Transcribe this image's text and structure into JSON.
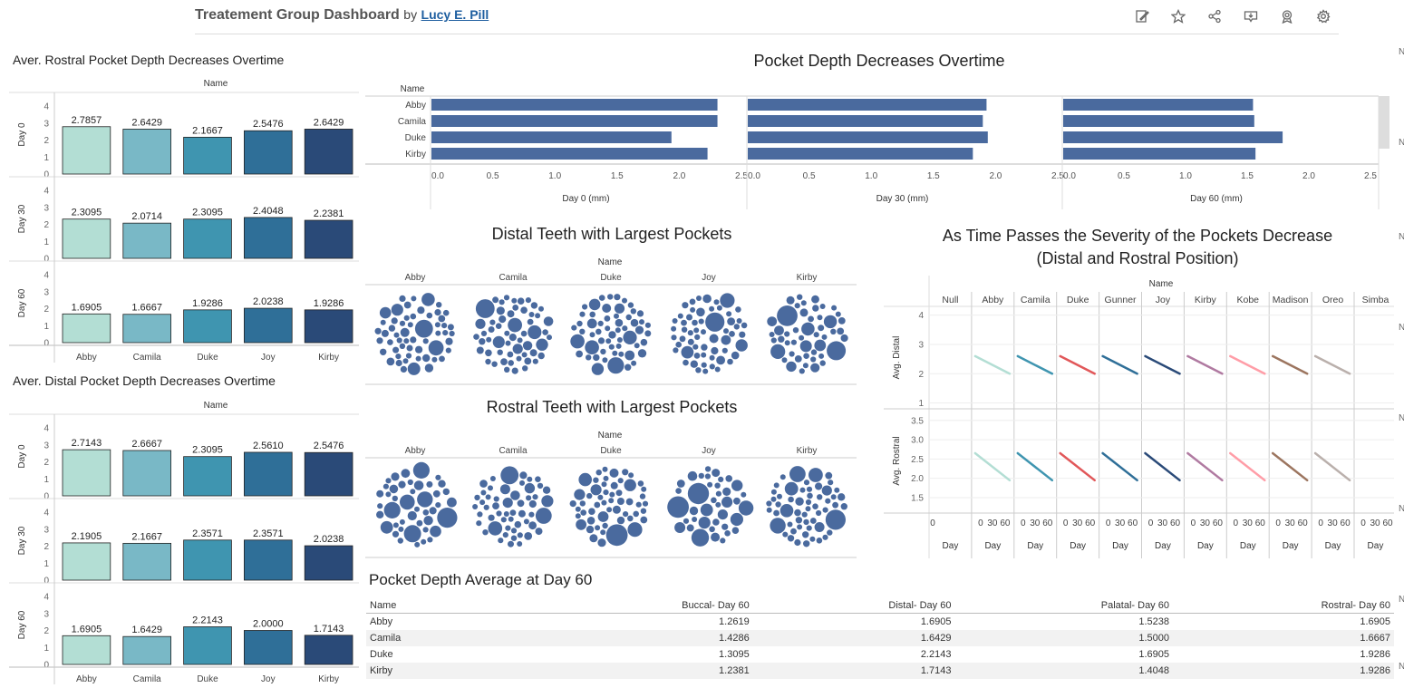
{
  "header": {
    "title": "Treatement Group Dashboard",
    "by": "by",
    "author": "Lucy E. Pill",
    "tools": [
      "edit-icon",
      "star-icon",
      "share-icon",
      "download-icon",
      "badge-icon",
      "gear-icon"
    ]
  },
  "colors": {
    "names5": [
      "#b3ded4",
      "#79b8c6",
      "#3f95b0",
      "#2f6f98",
      "#2a4a78"
    ],
    "bar": "#4a6a9e",
    "bubble": "#4a6a9e",
    "lines": [
      "#b3ded4",
      "#3f95b0",
      "#e15759",
      "#2f6f98",
      "#2a4a78",
      "#b07aa1",
      "#ff9da7",
      "#9c755f",
      "#bab0ac"
    ]
  },
  "chart_data": [
    {
      "type": "bar",
      "title": "Aver. Rostral Pocket Depth Decreases Overtime",
      "header": "Name",
      "categories": [
        "Abby",
        "Camila",
        "Duke",
        "Joy",
        "Kirby"
      ],
      "rows": [
        {
          "label": "Day 0",
          "values": [
            2.7857,
            2.6429,
            2.1667,
            2.5476,
            2.6429
          ],
          "labels": [
            "2.7857",
            "2.6429",
            "2.1667",
            "2.5476",
            "2.6429"
          ]
        },
        {
          "label": "Day 30",
          "values": [
            2.3095,
            2.0714,
            2.3095,
            2.4048,
            2.2381
          ],
          "labels": [
            "2.3095",
            "2.0714",
            "2.3095",
            "2.4048",
            "2.2381"
          ]
        },
        {
          "label": "Day 60",
          "values": [
            1.6905,
            1.6667,
            1.9286,
            2.0238,
            1.9286
          ],
          "labels": [
            "1.6905",
            "1.6667",
            "1.9286",
            "2.0238",
            "1.9286"
          ]
        }
      ],
      "ylim": [
        0,
        4
      ],
      "yticks": [
        0,
        1,
        2,
        3,
        4
      ]
    },
    {
      "type": "bar",
      "title": "Aver. Distal Pocket Depth Decreases Overtime",
      "header": "Name",
      "categories": [
        "Abby",
        "Camila",
        "Duke",
        "Joy",
        "Kirby"
      ],
      "rows": [
        {
          "label": "Day 0",
          "values": [
            2.7143,
            2.6667,
            2.3095,
            2.561,
            2.5476
          ],
          "labels": [
            "2.7143",
            "2.6667",
            "2.3095",
            "2.5610",
            "2.5476"
          ]
        },
        {
          "label": "Day 30",
          "values": [
            2.1905,
            2.1667,
            2.3571,
            2.3571,
            2.0238
          ],
          "labels": [
            "2.1905",
            "2.1667",
            "2.3571",
            "2.3571",
            "2.0238"
          ]
        },
        {
          "label": "Day 60",
          "values": [
            1.6905,
            1.6429,
            2.2143,
            2.0,
            1.7143
          ],
          "labels": [
            "1.6905",
            "1.6429",
            "2.2143",
            "2.0000",
            "1.7143"
          ]
        }
      ],
      "ylim": [
        0,
        4
      ],
      "yticks": [
        0,
        1,
        2,
        3,
        4
      ]
    },
    {
      "type": "bar",
      "title": "Pocket Depth Decreases Overtime",
      "header": "Name",
      "categories": [
        "Abby",
        "Camila",
        "Duke",
        "Kirby"
      ],
      "panels": [
        {
          "xlabel": "Day 0 (mm)",
          "values": [
            2.3,
            2.3,
            1.93,
            2.22
          ]
        },
        {
          "xlabel": "Day 30 (mm)",
          "values": [
            1.92,
            1.89,
            1.93,
            1.81
          ]
        },
        {
          "xlabel": "Day 60 (mm)",
          "values": [
            1.54,
            1.55,
            1.78,
            1.56
          ]
        }
      ],
      "xlim": [
        0,
        2.5
      ],
      "xticks": [
        "0.0",
        "0.5",
        "1.0",
        "1.5",
        "2.0",
        "2.5"
      ]
    },
    {
      "type": "scatter",
      "title": "Distal Teeth with Largest Pockets",
      "header": "Name",
      "categories": [
        "Abby",
        "Camila",
        "Duke",
        "Joy",
        "Kirby"
      ]
    },
    {
      "type": "scatter",
      "title": "Rostral Teeth with Largest Pockets",
      "header": "Name",
      "categories": [
        "Abby",
        "Camila",
        "Duke",
        "Joy",
        "Kirby"
      ]
    },
    {
      "type": "line",
      "title": [
        "As Time Passes the Severity of the Pockets Decrease",
        "(Distal and Rostral Position)"
      ],
      "header": "Name",
      "columns": [
        "Null",
        "Abby",
        "Camila",
        "Duke",
        "Gunner",
        "Joy",
        "Kirby",
        "Kobe",
        "Madison",
        "Oreo",
        "Simba"
      ],
      "xlabel": "Day",
      "xticks": [
        "0",
        "30",
        "60"
      ],
      "rows": [
        {
          "label": "Avg. Distal",
          "ylim": [
            0.8,
            4.3
          ],
          "yticks": [
            "1",
            "2",
            "3",
            "4"
          ],
          "tickvals": [
            1,
            2,
            3,
            4
          ],
          "series": [
            null,
            [
              2.6,
              2.0
            ],
            [
              2.6,
              2.0
            ],
            [
              2.6,
              2.0
            ],
            [
              2.6,
              2.0
            ],
            [
              2.6,
              2.0
            ],
            [
              2.6,
              2.0
            ],
            [
              2.6,
              2.0
            ],
            [
              2.6,
              2.0
            ],
            [
              2.6,
              2.0
            ],
            [
              2.6,
              2.0
            ]
          ]
        },
        {
          "label": "Avg. Rostral",
          "ylim": [
            1.1,
            3.8
          ],
          "yticks": [
            "1.5",
            "2.0",
            "2.5",
            "3.0",
            "3.5"
          ],
          "tickvals": [
            1.5,
            2.0,
            2.5,
            3.0,
            3.5
          ],
          "series": [
            null,
            [
              2.65,
              1.95
            ],
            [
              2.65,
              1.95
            ],
            [
              2.65,
              1.95
            ],
            [
              2.65,
              1.95
            ],
            [
              2.65,
              1.95
            ],
            [
              2.65,
              1.95
            ],
            [
              2.65,
              1.95
            ],
            [
              2.65,
              1.95
            ],
            [
              2.65,
              1.95
            ],
            [
              2.65,
              1.95
            ]
          ]
        }
      ]
    },
    {
      "type": "table",
      "title": "Pocket Depth Average at Day 60",
      "columns": [
        "Name",
        "Buccal- Day 60",
        "Distal- Day 60",
        "Palatal- Day 60",
        "Rostral- Day 60"
      ],
      "rows": [
        [
          "Abby",
          "1.2619",
          "1.6905",
          "1.5238",
          "1.6905"
        ],
        [
          "Camila",
          "1.4286",
          "1.6429",
          "1.5000",
          "1.6667"
        ],
        [
          "Duke",
          "1.3095",
          "2.2143",
          "1.6905",
          "1.9286"
        ],
        [
          "Kirby",
          "1.2381",
          "1.7143",
          "1.4048",
          "1.9286"
        ]
      ]
    }
  ],
  "edge_labels": [
    "N",
    "N",
    "N",
    "N",
    "N",
    "N",
    "N",
    "N"
  ]
}
